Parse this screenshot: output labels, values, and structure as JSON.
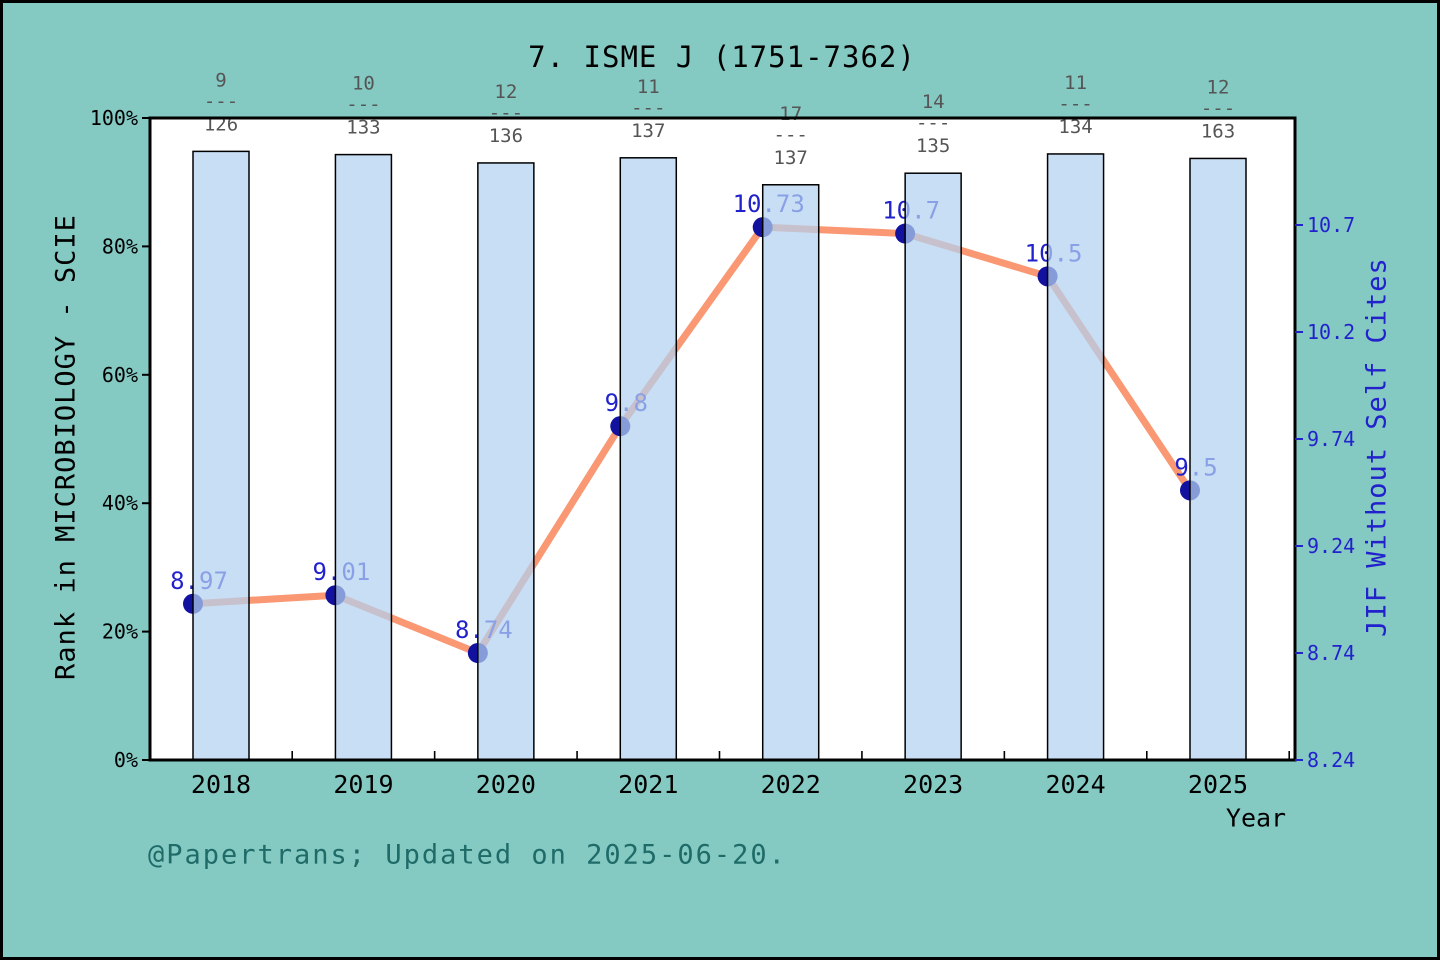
{
  "title": "7. ISME J (1751-7362)",
  "annotation": "@Papertrans; Updated on 2025-06-20.",
  "colors": {
    "background": "#85C9C3",
    "plot_background": "#FFFFFF",
    "frame": "#000000",
    "bar_fill": "#B3D1F0",
    "bar_edge": "#000000",
    "line": "#F99873",
    "marker": "#12129F",
    "point_label_text": "#2222CC",
    "right_axis_text": "#2222CC",
    "rank_label_text": "#555555",
    "axis_text": "#000000",
    "annotation_text": "#1E6B68"
  },
  "chart_data": {
    "type": "bar",
    "subtype": "bar+line combo",
    "categories": [
      "2018",
      "2019",
      "2020",
      "2021",
      "2022",
      "2023",
      "2024",
      "2025"
    ],
    "series": [
      {
        "name": "Rank in MICROBIOLOGY - SCIE",
        "type": "bar",
        "axis": "left",
        "values_pct": [
          94.8,
          94.3,
          93.0,
          93.8,
          89.6,
          91.4,
          94.4,
          93.7
        ],
        "rank_labels": [
          {
            "rank": "9",
            "total": "126"
          },
          {
            "rank": "10",
            "total": "133"
          },
          {
            "rank": "12",
            "total": "136"
          },
          {
            "rank": "11",
            "total": "137"
          },
          {
            "rank": "17",
            "total": "137"
          },
          {
            "rank": "14",
            "total": "135"
          },
          {
            "rank": "11",
            "total": "134"
          },
          {
            "rank": "12",
            "total": "163"
          }
        ],
        "rank_separator": "---"
      },
      {
        "name": "JIF Without Self Cites",
        "type": "line",
        "axis": "right",
        "values": [
          8.97,
          9.01,
          8.74,
          9.8,
          10.73,
          10.7,
          10.5,
          9.5
        ],
        "point_labels": [
          "8.97",
          "9.01",
          "8.74",
          "9.8",
          "10.73",
          "10.7",
          "10.5",
          "9.5"
        ]
      }
    ],
    "left_axis": {
      "label": "Rank in MICROBIOLOGY - SCIE",
      "ticks": [
        "0%",
        "20%",
        "40%",
        "60%",
        "80%",
        "100%"
      ],
      "tick_values": [
        0,
        20,
        40,
        60,
        80,
        100
      ],
      "range": [
        0,
        100
      ]
    },
    "right_axis": {
      "label": "JIF Without Self Cites",
      "ticks": [
        "8.24",
        "8.74",
        "9.24",
        "9.74",
        "10.2",
        "10.7"
      ],
      "tick_values": [
        8.24,
        8.74,
        9.24,
        9.74,
        10.24,
        10.74
      ],
      "range": [
        8.24,
        11.24
      ]
    },
    "x_axis": {
      "label": "Year",
      "grid": false
    },
    "legend": "none"
  }
}
